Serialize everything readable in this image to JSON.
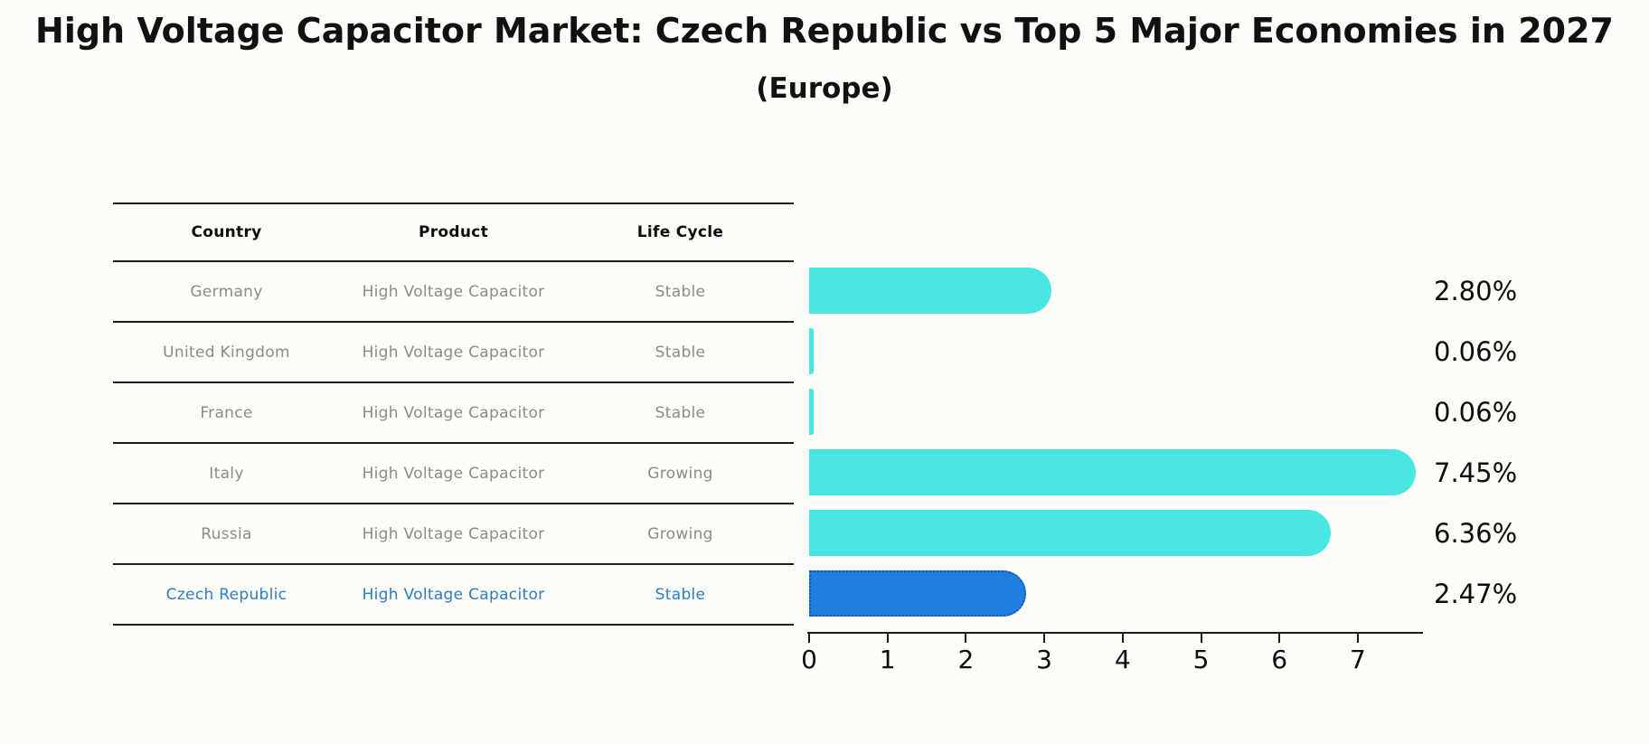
{
  "title": "High Voltage Capacitor Market: Czech Republic vs Top 5 Major Economies in 2027",
  "subtitle": "(Europe)",
  "table": {
    "headers": [
      "Country",
      "Product",
      "Life Cycle"
    ],
    "rows": [
      {
        "country": "Germany",
        "product": "High Voltage Capacitor",
        "life_cycle": "Stable",
        "highlight": false
      },
      {
        "country": "United Kingdom",
        "product": "High Voltage Capacitor",
        "life_cycle": "Stable",
        "highlight": false
      },
      {
        "country": "France",
        "product": "High Voltage Capacitor",
        "life_cycle": "Stable",
        "highlight": false
      },
      {
        "country": "Italy",
        "product": "High Voltage Capacitor",
        "life_cycle": "Growing",
        "highlight": false
      },
      {
        "country": "Russia",
        "product": "High Voltage Capacitor",
        "life_cycle": "Growing",
        "highlight": false
      },
      {
        "country": "Czech Republic",
        "product": "High Voltage Capacitor",
        "life_cycle": "Stable",
        "highlight": true
      }
    ]
  },
  "chart_data": {
    "type": "bar",
    "orientation": "horizontal",
    "title": "High Voltage Capacitor Market: Czech Republic vs Top 5 Major Economies in 2027",
    "subtitle": "(Europe)",
    "categories": [
      "Germany",
      "United Kingdom",
      "France",
      "Italy",
      "Russia",
      "Czech Republic"
    ],
    "values": [
      2.8,
      0.06,
      0.06,
      7.45,
      6.36,
      2.47
    ],
    "value_labels": [
      "2.80%",
      "0.06%",
      "0.06%",
      "7.45%",
      "6.36%",
      "2.47%"
    ],
    "highlight_index": 5,
    "xlabel": "",
    "ylabel": "",
    "x_ticks": [
      0,
      1,
      2,
      3,
      4,
      5,
      6,
      7
    ],
    "xlim": [
      0,
      7.84
    ],
    "grid": false,
    "legend": false
  },
  "colors": {
    "background": "#fcfcf9",
    "bar": "#48E6E0",
    "highlight_bar": "#1F7EE0",
    "highlight_bar_border": "#1356AD",
    "row_text": "#8b8b8b",
    "highlight_text": "#2e7dbf",
    "heading_text": "#0d0d0d"
  }
}
